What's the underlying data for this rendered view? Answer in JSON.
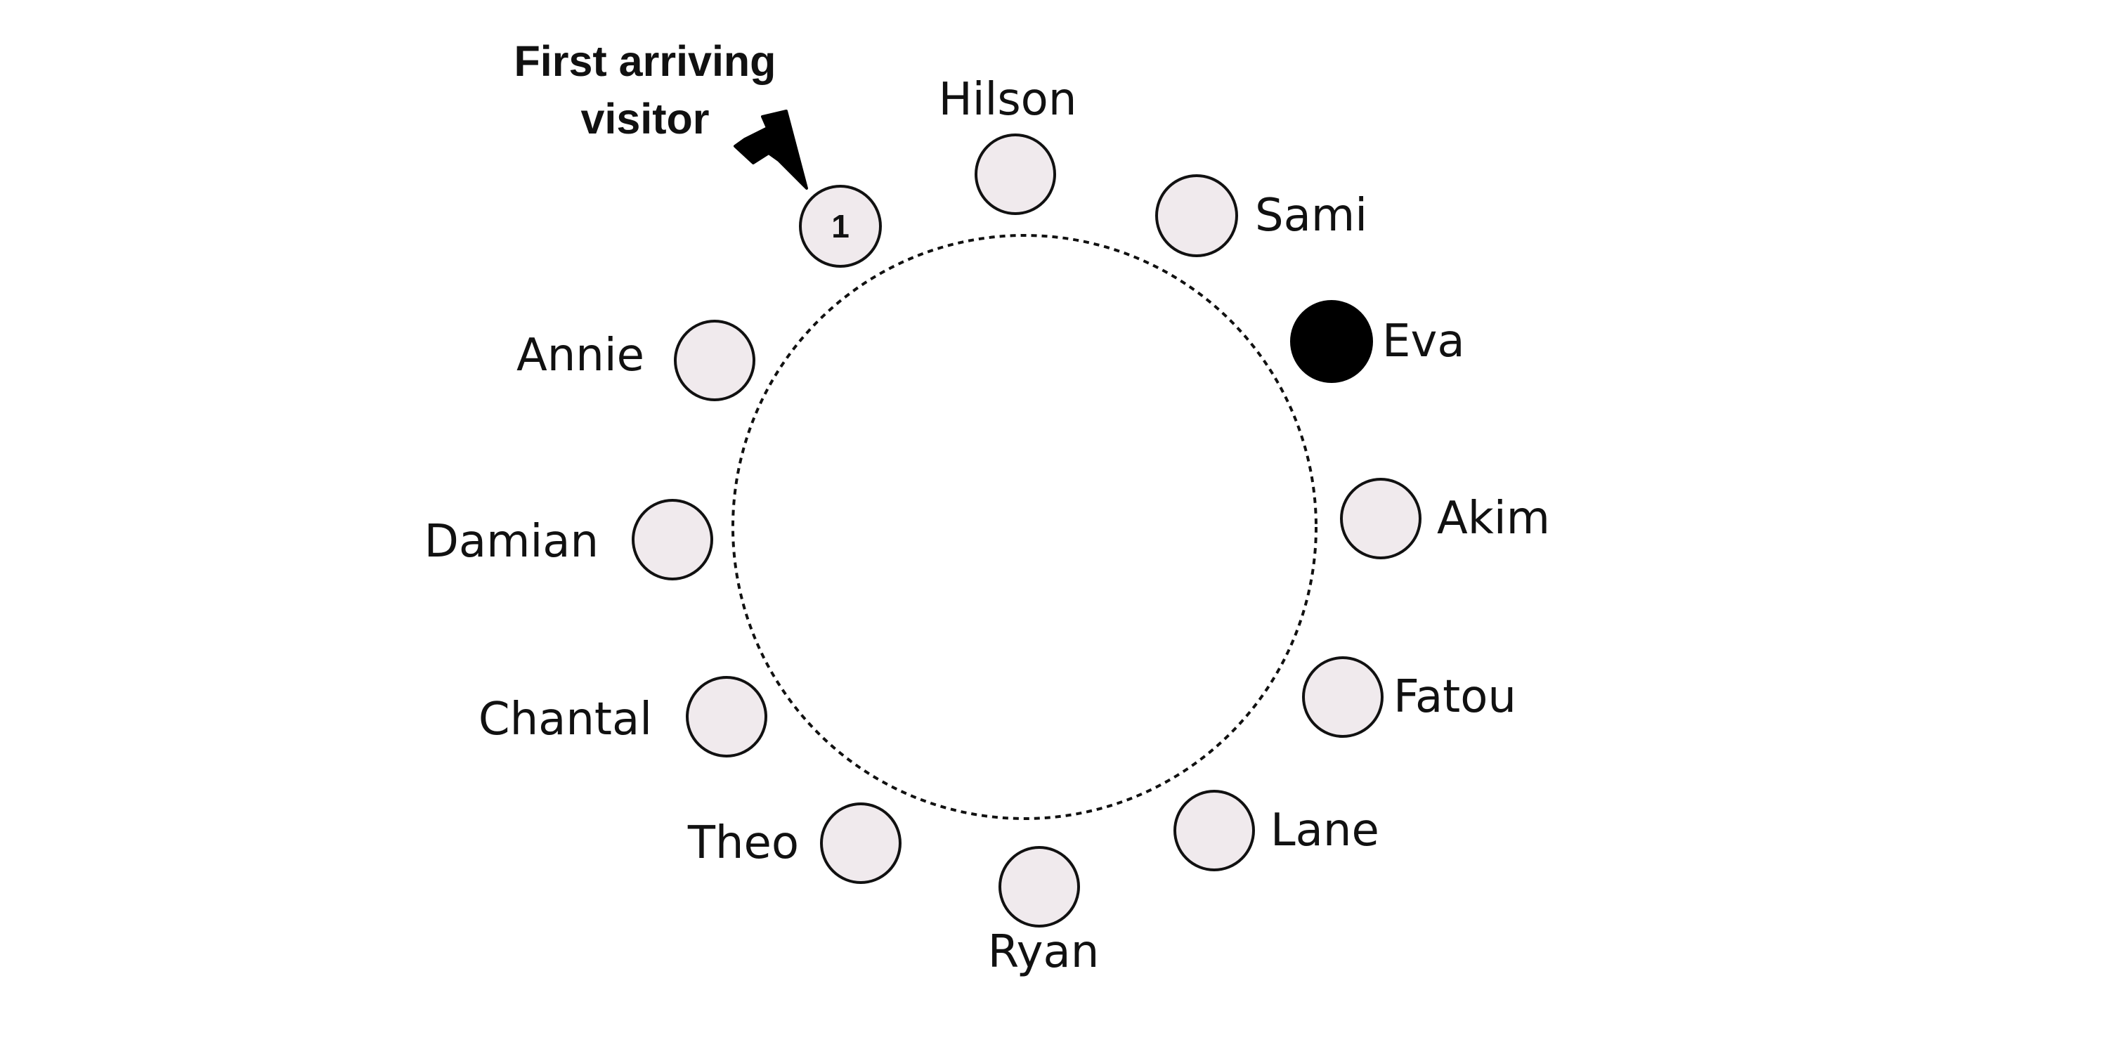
{
  "callout": {
    "line1": "First arriving",
    "line2": "visitor"
  },
  "colors": {
    "empty_seat": "#f0eaed",
    "highlighted_seat": "#000000",
    "outline": "#111111"
  },
  "seats": [
    {
      "name": "",
      "number": "1",
      "filled": false
    },
    {
      "name": "Hilson",
      "number": "",
      "filled": false
    },
    {
      "name": "Sami",
      "number": "",
      "filled": false
    },
    {
      "name": "Eva",
      "number": "",
      "filled": true
    },
    {
      "name": "Akim",
      "number": "",
      "filled": false
    },
    {
      "name": "Fatou",
      "number": "",
      "filled": false
    },
    {
      "name": "Lane",
      "number": "",
      "filled": false
    },
    {
      "name": "Ryan",
      "number": "",
      "filled": false
    },
    {
      "name": "Theo",
      "number": "",
      "filled": false
    },
    {
      "name": "Chantal",
      "number": "",
      "filled": false
    },
    {
      "name": "Damian",
      "number": "",
      "filled": false
    },
    {
      "name": "Annie",
      "number": "",
      "filled": false
    }
  ]
}
